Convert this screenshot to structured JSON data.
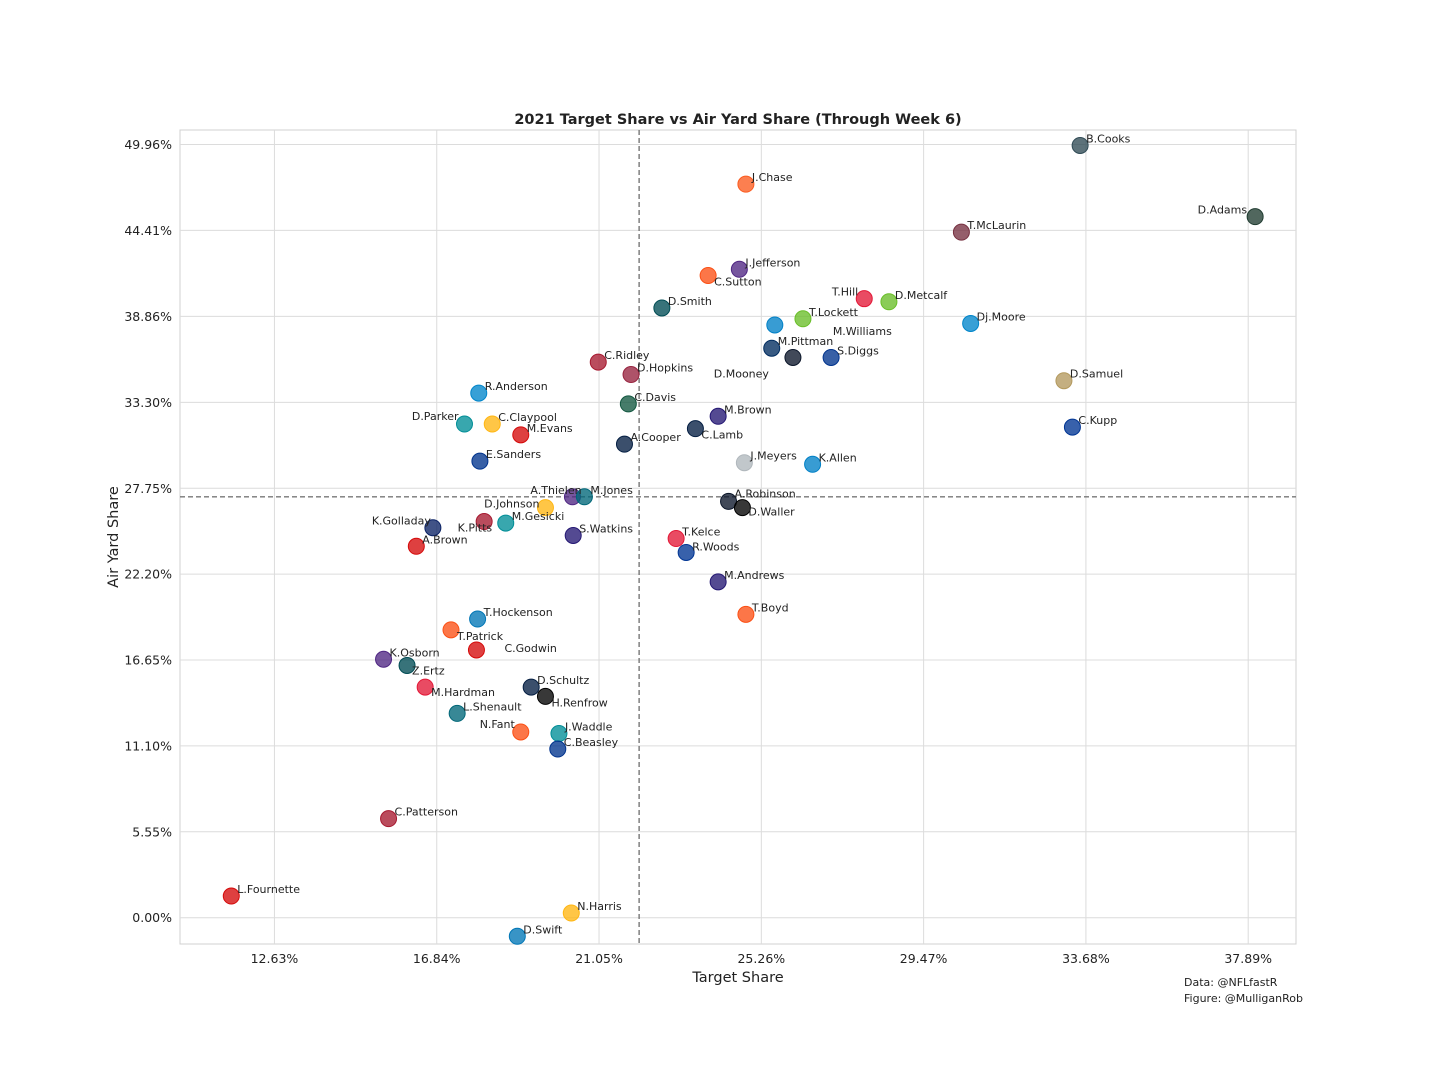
{
  "chart_data": {
    "type": "scatter",
    "title": "2021 Target Share vs Air Yard Share (Through Week 6)",
    "xlabel": "Target Share",
    "ylabel": "Air Yard Share",
    "xlim": [
      10.18,
      39.13
    ],
    "ylim": [
      -1.7,
      50.9
    ],
    "x_ticks": [
      12.63,
      16.84,
      21.05,
      25.26,
      29.47,
      33.68,
      37.89
    ],
    "x_tick_labels": [
      "12.63%",
      "16.84%",
      "21.05%",
      "25.26%",
      "29.47%",
      "33.68%",
      "37.89%"
    ],
    "y_ticks": [
      0,
      5.55,
      11.1,
      16.65,
      22.2,
      27.75,
      33.3,
      38.86,
      44.41,
      49.96
    ],
    "y_tick_labels": [
      "0.00%",
      "5.55%",
      "11.10%",
      "16.65%",
      "22.20%",
      "27.75%",
      "33.30%",
      "38.86%",
      "44.41%",
      "49.96%"
    ],
    "x_ref_line": 22.09,
    "y_ref_line": 27.2,
    "grid": true,
    "points": [
      {
        "label": "B.Cooks",
        "x": 33.53,
        "y": 49.9,
        "color": "#2f4a55"
      },
      {
        "label": "J.Chase",
        "x": 24.86,
        "y": 47.4,
        "color": "#fb5b1f"
      },
      {
        "label": "D.Adams",
        "x": 38.07,
        "y": 45.3,
        "color": "#203c31"
      },
      {
        "label": "T.McLaurin",
        "x": 30.45,
        "y": 44.3,
        "color": "#773141"
      },
      {
        "label": "J.Jefferson",
        "x": 24.69,
        "y": 41.9,
        "color": "#4f2683"
      },
      {
        "label": "C.Sutton",
        "x": 23.88,
        "y": 41.5,
        "color": "#fb4f14"
      },
      {
        "label": "T.Hill",
        "x": 27.93,
        "y": 40.0,
        "color": "#e31837"
      },
      {
        "label": "D.Metcalf",
        "x": 28.57,
        "y": 39.8,
        "color": "#69be28"
      },
      {
        "label": "D.Smith",
        "x": 22.68,
        "y": 39.4,
        "color": "#004c54"
      },
      {
        "label": "T.Lockett",
        "x": 26.34,
        "y": 38.7,
        "color": "#69be28"
      },
      {
        "label": "Dj.Moore",
        "x": 30.69,
        "y": 38.4,
        "color": "#0085ca"
      },
      {
        "label": "M.Williams",
        "x": 25.61,
        "y": 38.3,
        "color": "#0080c6"
      },
      {
        "label": "M.Pittman",
        "x": 25.53,
        "y": 36.8,
        "color": "#002c5f"
      },
      {
        "label": "D.Mooney",
        "x": 26.08,
        "y": 36.2,
        "color": "#0b162a"
      },
      {
        "label": "S.Diggs",
        "x": 27.07,
        "y": 36.2,
        "color": "#00338d"
      },
      {
        "label": "C.Ridley",
        "x": 21.03,
        "y": 35.9,
        "color": "#a71930"
      },
      {
        "label": "D.Hopkins",
        "x": 21.88,
        "y": 35.1,
        "color": "#97233f"
      },
      {
        "label": "D.Samuel",
        "x": 33.11,
        "y": 34.7,
        "color": "#b3995d"
      },
      {
        "label": "R.Anderson",
        "x": 17.93,
        "y": 33.9,
        "color": "#0085ca"
      },
      {
        "label": "C.Davis",
        "x": 21.81,
        "y": 33.2,
        "color": "#125740"
      },
      {
        "label": "M.Brown",
        "x": 24.14,
        "y": 32.4,
        "color": "#241773"
      },
      {
        "label": "D.Parker",
        "x": 17.56,
        "y": 31.9,
        "color": "#008e97"
      },
      {
        "label": "C.Claypool",
        "x": 18.28,
        "y": 31.9,
        "color": "#ffb612"
      },
      {
        "label": "C.Kupp",
        "x": 33.33,
        "y": 31.7,
        "color": "#003594"
      },
      {
        "label": "C.Lamb",
        "x": 23.55,
        "y": 31.6,
        "color": "#041e42"
      },
      {
        "label": "M.Evans",
        "x": 19.02,
        "y": 31.2,
        "color": "#d50a0a"
      },
      {
        "label": "A.Cooper",
        "x": 21.71,
        "y": 30.6,
        "color": "#041e42"
      },
      {
        "label": "J.Meyers",
        "x": 24.82,
        "y": 29.4,
        "color": "#b0b7bc"
      },
      {
        "label": "E.Sanders",
        "x": 17.96,
        "y": 29.5,
        "color": "#00338d"
      },
      {
        "label": "K.Allen",
        "x": 26.59,
        "y": 29.3,
        "color": "#0080c6"
      },
      {
        "label": "A.Thielen",
        "x": 20.36,
        "y": 27.2,
        "color": "#4f2683"
      },
      {
        "label": "M.Jones",
        "x": 20.67,
        "y": 27.2,
        "color": "#006778"
      },
      {
        "label": "A.Robinson",
        "x": 24.41,
        "y": 26.9,
        "color": "#0b162a"
      },
      {
        "label": "D.Waller",
        "x": 24.77,
        "y": 26.5,
        "color": "#000000"
      },
      {
        "label": "D.Johnson",
        "x": 19.66,
        "y": 26.5,
        "color": "#ffb612"
      },
      {
        "label": "K.Pitts",
        "x": 18.07,
        "y": 25.6,
        "color": "#a71930"
      },
      {
        "label": "M.Gesicki",
        "x": 18.63,
        "y": 25.5,
        "color": "#008e97"
      },
      {
        "label": "K.Golladay",
        "x": 16.74,
        "y": 25.2,
        "color": "#0b2265"
      },
      {
        "label": "S.Watkins",
        "x": 20.38,
        "y": 24.7,
        "color": "#241773"
      },
      {
        "label": "T.Kelce",
        "x": 23.05,
        "y": 24.5,
        "color": "#e31837"
      },
      {
        "label": "A.Brown",
        "x": 16.31,
        "y": 24.0,
        "color": "#d50a0a"
      },
      {
        "label": "R.Woods",
        "x": 23.31,
        "y": 23.6,
        "color": "#003594"
      },
      {
        "label": "M.Andrews",
        "x": 24.14,
        "y": 21.7,
        "color": "#241773"
      },
      {
        "label": "T.Boyd",
        "x": 24.86,
        "y": 19.6,
        "color": "#fb4f14"
      },
      {
        "label": "T.Hockenson",
        "x": 17.9,
        "y": 19.3,
        "color": "#0076b6"
      },
      {
        "label": "T.Patrick",
        "x": 17.21,
        "y": 18.6,
        "color": "#fb4f14"
      },
      {
        "label": "C.Godwin",
        "x": 17.87,
        "y": 17.3,
        "color": "#d50a0a"
      },
      {
        "label": "K.Osborn",
        "x": 15.46,
        "y": 16.7,
        "color": "#4f2683"
      },
      {
        "label": "Z.Ertz",
        "x": 16.07,
        "y": 16.3,
        "color": "#004c54"
      },
      {
        "label": "D.Schultz",
        "x": 19.29,
        "y": 14.9,
        "color": "#041e42"
      },
      {
        "label": "H.Renfrow",
        "x": 19.66,
        "y": 14.3,
        "color": "#000000"
      },
      {
        "label": "M.Hardman",
        "x": 16.54,
        "y": 14.9,
        "color": "#e31837"
      },
      {
        "label": "L.Shenault",
        "x": 17.37,
        "y": 13.2,
        "color": "#006778"
      },
      {
        "label": "N.Fant",
        "x": 19.02,
        "y": 12.0,
        "color": "#fb4f14"
      },
      {
        "label": "J.Waddle",
        "x": 20.01,
        "y": 11.9,
        "color": "#008e97"
      },
      {
        "label": "C.Beasley",
        "x": 19.98,
        "y": 10.9,
        "color": "#00338d"
      },
      {
        "label": "C.Patterson",
        "x": 15.59,
        "y": 6.4,
        "color": "#a71930"
      },
      {
        "label": "L.Fournette",
        "x": 11.51,
        "y": 1.4,
        "color": "#d50a0a"
      },
      {
        "label": "N.Harris",
        "x": 20.33,
        "y": 0.3,
        "color": "#ffb612"
      },
      {
        "label": "D.Swift",
        "x": 18.93,
        "y": -1.2,
        "color": "#0076b6"
      }
    ]
  },
  "credits": {
    "line1": "Data: @NFLfastR",
    "line2": "Figure: @MulliganRob"
  }
}
